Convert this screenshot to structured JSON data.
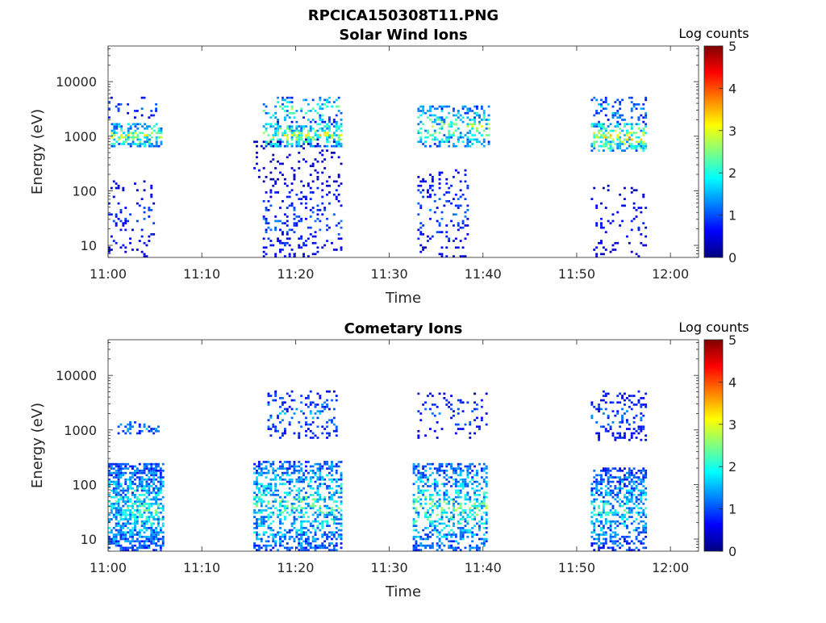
{
  "figure": {
    "title": "RPCICA150308T11.PNG"
  },
  "colormap": [
    "#00007f",
    "#0000ff",
    "#0080ff",
    "#00ffff",
    "#80ff80",
    "#ffff00",
    "#ff8000",
    "#ff0000",
    "#7f0000"
  ],
  "chart_data": [
    {
      "type": "heatmap",
      "title": "Solar Wind Ions",
      "xlabel": "Time",
      "ylabel": "Energy (eV)",
      "x_ticks": [
        "11:00",
        "11:10",
        "11:20",
        "11:30",
        "11:40",
        "11:50",
        "12:00"
      ],
      "x_range_minutes": [
        0,
        63
      ],
      "y_ticks": [
        "10",
        "100",
        "1000",
        "10000"
      ],
      "y_scale": "log",
      "y_range": [
        6,
        45000
      ],
      "colorbar": {
        "label": "Log counts",
        "ticks": [
          "0",
          "1",
          "2",
          "3",
          "4",
          "5"
        ],
        "range": [
          0,
          5
        ]
      },
      "clusters": [
        {
          "t": [
            0.3,
            5.6
          ],
          "e_lo": 600,
          "e_hi": 1800,
          "peak": 3.0,
          "density": 0.55
        },
        {
          "t": [
            0.0,
            5.5
          ],
          "e_lo": 2000,
          "e_hi": 5500,
          "peak": 1.2,
          "density": 0.12
        },
        {
          "t": [
            0.0,
            5.0
          ],
          "e_lo": 6,
          "e_hi": 150,
          "peak": 1.0,
          "density": 0.12
        },
        {
          "t": [
            16.5,
            25.0
          ],
          "e_lo": 600,
          "e_hi": 1800,
          "peak": 3.1,
          "density": 0.5
        },
        {
          "t": [
            16.5,
            25.0
          ],
          "e_lo": 1800,
          "e_hi": 5500,
          "peak": 2.5,
          "density": 0.22
        },
        {
          "t": [
            15.5,
            25.0
          ],
          "e_lo": 150,
          "e_hi": 900,
          "peak": 0.6,
          "density": 0.1
        },
        {
          "t": [
            16.5,
            25.0
          ],
          "e_lo": 6,
          "e_hi": 150,
          "peak": 1.2,
          "density": 0.17
        },
        {
          "t": [
            33.0,
            40.6
          ],
          "e_lo": 600,
          "e_hi": 3500,
          "peak": 2.7,
          "density": 0.36
        },
        {
          "t": [
            33.0,
            38.5
          ],
          "e_lo": 6,
          "e_hi": 250,
          "peak": 1.2,
          "density": 0.16
        },
        {
          "t": [
            51.5,
            57.5
          ],
          "e_lo": 500,
          "e_hi": 1800,
          "peak": 3.3,
          "density": 0.5
        },
        {
          "t": [
            51.5,
            57.5
          ],
          "e_lo": 1800,
          "e_hi": 5500,
          "peak": 1.8,
          "density": 0.25
        },
        {
          "t": [
            51.5,
            57.5
          ],
          "e_lo": 6,
          "e_hi": 130,
          "peak": 0.8,
          "density": 0.1
        }
      ]
    },
    {
      "type": "heatmap",
      "title": "Cometary Ions",
      "xlabel": "Time",
      "ylabel": "Energy (eV)",
      "x_ticks": [
        "11:00",
        "11:10",
        "11:20",
        "11:30",
        "11:40",
        "11:50",
        "12:00"
      ],
      "x_range_minutes": [
        0,
        63
      ],
      "y_ticks": [
        "10",
        "100",
        "1000",
        "10000"
      ],
      "y_scale": "log",
      "y_range": [
        6,
        45000
      ],
      "colorbar": {
        "label": "Log counts",
        "ticks": [
          "0",
          "1",
          "2",
          "3",
          "4",
          "5"
        ],
        "range": [
          0,
          5
        ]
      },
      "clusters": [
        {
          "t": [
            0.0,
            5.8
          ],
          "e_lo": 6,
          "e_hi": 240,
          "peak": 2.3,
          "density": 0.6
        },
        {
          "t": [
            1.0,
            5.5
          ],
          "e_lo": 800,
          "e_hi": 1500,
          "peak": 1.7,
          "density": 0.25
        },
        {
          "t": [
            15.5,
            25.0
          ],
          "e_lo": 6,
          "e_hi": 280,
          "peak": 2.4,
          "density": 0.45
        },
        {
          "t": [
            17.0,
            24.5
          ],
          "e_lo": 700,
          "e_hi": 5500,
          "peak": 1.5,
          "density": 0.22
        },
        {
          "t": [
            32.5,
            40.5
          ],
          "e_lo": 6,
          "e_hi": 250,
          "peak": 2.5,
          "density": 0.45
        },
        {
          "t": [
            33.0,
            40.5
          ],
          "e_lo": 700,
          "e_hi": 5500,
          "peak": 1.2,
          "density": 0.12
        },
        {
          "t": [
            51.5,
            57.3
          ],
          "e_lo": 6,
          "e_hi": 200,
          "peak": 2.1,
          "density": 0.45
        },
        {
          "t": [
            51.5,
            57.3
          ],
          "e_lo": 600,
          "e_hi": 5500,
          "peak": 1.3,
          "density": 0.22
        }
      ]
    }
  ]
}
